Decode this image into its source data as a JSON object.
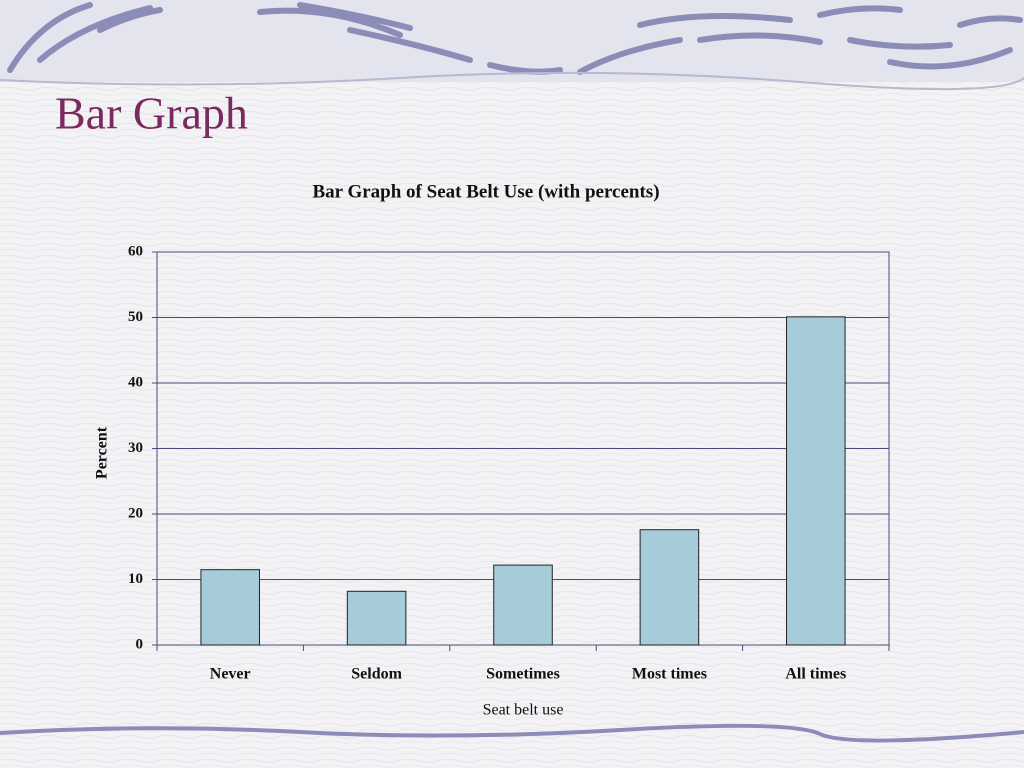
{
  "slide_title": "Bar Graph",
  "chart_data": {
    "type": "bar",
    "title": "Bar Graph of Seat Belt Use (with percents)",
    "x_label": "Seat belt use",
    "y_label": "Percent",
    "categories": [
      "Never",
      "Seldom",
      "Sometimes",
      "Most times",
      "All times"
    ],
    "values": [
      11.5,
      8.2,
      12.2,
      17.6,
      50.1
    ],
    "color": "#a6cbd9",
    "ylim": [
      0,
      60
    ],
    "yticks": [
      0,
      10,
      20,
      30,
      40,
      50,
      60
    ],
    "grid": true
  }
}
